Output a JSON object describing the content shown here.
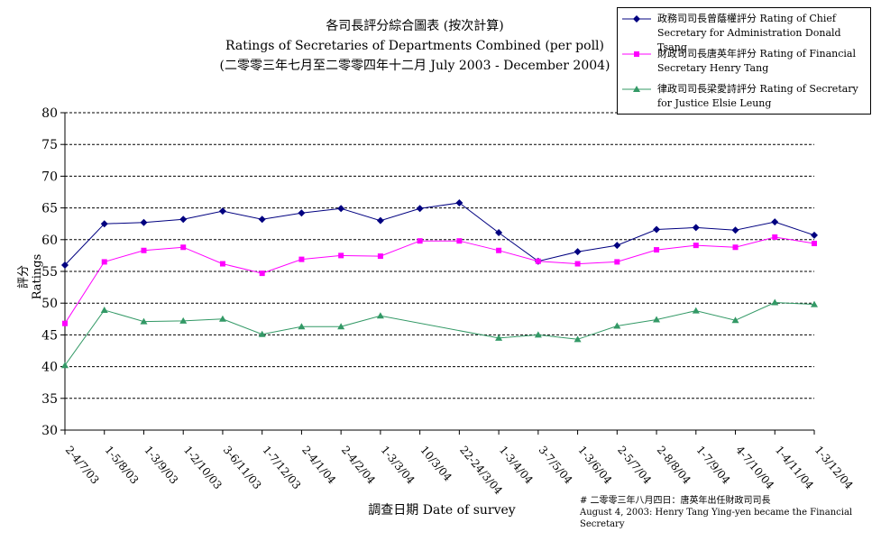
{
  "title": {
    "line1": "各司長評分綜合圖表 (按次計算)",
    "line2": "Ratings of Secretaries of Departments Combined (per poll)",
    "line3": "(二零零三年七月至二零零四年十二月 July 2003 - December 2004)"
  },
  "footnote": {
    "line1": "# 二零零三年八月四日：唐英年出任財政司司長",
    "line2": "August 4, 2003: Henry Tang Ying-yen became the Financial Secretary"
  },
  "chart_data": {
    "type": "line",
    "xlabel": "調查日期 Date of survey",
    "ylabel": "評分 Ratings",
    "ylim": [
      30,
      80
    ],
    "yticks": [
      30,
      35,
      40,
      45,
      50,
      55,
      60,
      65,
      70,
      75,
      80
    ],
    "grid": true,
    "legend_position": "top-right",
    "categories": [
      "2-4/7/03",
      "1-5/8/03",
      "1-3/9/03",
      "1-2/10/03",
      "3-6/11/03",
      "1-7/12/03",
      "2-4/1/04",
      "2-4/2/04",
      "1-3/3/04",
      "10/3/04",
      "22-24/3/04",
      "1-3/4/04",
      "3-7/5/04",
      "1-3/6/04",
      "2-5/7/04",
      "2-8/8/04",
      "1-7/9/04",
      "4-7/10/04",
      "1-4/11/04",
      "1-3/12/04"
    ],
    "series": [
      {
        "name": "政務司司長曾蔭權評分 Rating of Chief Secretary for Administration Donald Tsang",
        "color": "#000080",
        "marker": "diamond",
        "values": [
          56.0,
          62.5,
          62.7,
          63.2,
          64.5,
          63.2,
          64.2,
          64.9,
          63.0,
          64.9,
          65.8,
          61.1,
          56.6,
          58.1,
          59.1,
          61.6,
          61.9,
          61.5,
          62.8,
          60.7
        ]
      },
      {
        "name": "財政司司長唐英年評分 Rating of Financial Secretary Henry Tang",
        "color": "#ff00ff",
        "marker": "square",
        "values": [
          46.8,
          56.5,
          58.3,
          58.8,
          56.2,
          54.7,
          56.9,
          57.5,
          57.4,
          59.8,
          59.8,
          58.3,
          56.6,
          56.2,
          56.5,
          58.4,
          59.1,
          58.8,
          60.4,
          59.4
        ]
      },
      {
        "name": "律政司司長梁愛詩評分 Rating of Secretary for Justice Elsie Leung",
        "color": "#339966",
        "marker": "triangle",
        "values": [
          40.2,
          48.9,
          47.1,
          47.2,
          47.5,
          45.1,
          46.3,
          46.3,
          48.0,
          null,
          null,
          44.5,
          45.0,
          44.3,
          46.4,
          47.4,
          48.8,
          47.3,
          50.1,
          49.8
        ]
      }
    ]
  }
}
